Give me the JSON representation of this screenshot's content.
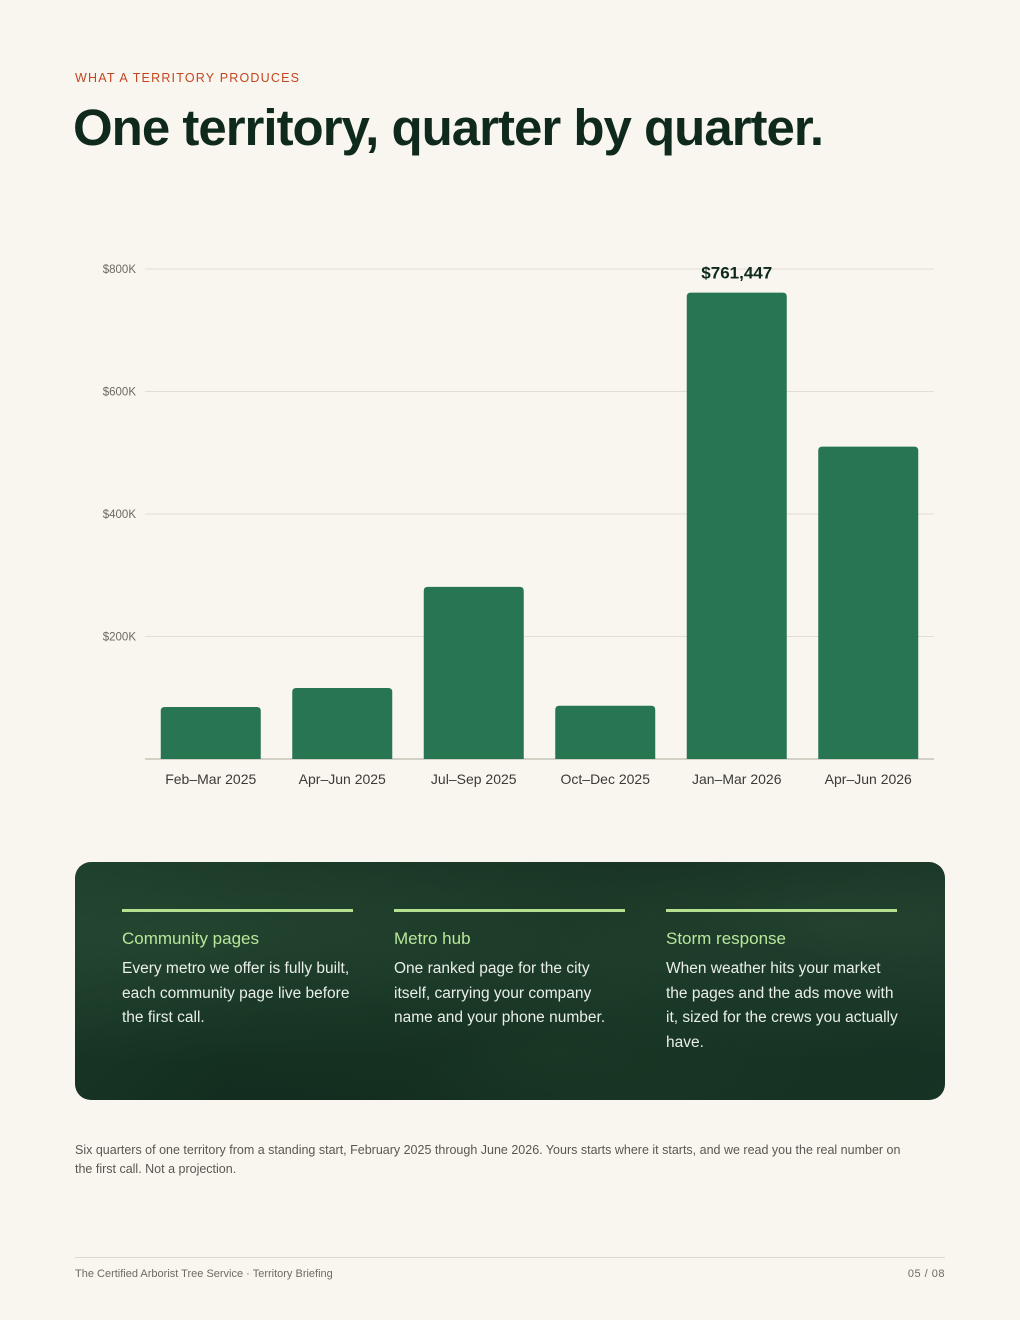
{
  "header": {
    "eyebrow": "WHAT A TERRITORY PRODUCES",
    "title": "One territory, quarter by quarter."
  },
  "chart_data": {
    "type": "bar",
    "categories": [
      "Feb–Mar 2025",
      "Apr–Jun 2025",
      "Jul–Sep 2025",
      "Oct–Dec 2025",
      "Jan–Mar 2026",
      "Apr–Jun 2026"
    ],
    "values": [
      85000,
      116000,
      281000,
      87000,
      761447,
      510000
    ],
    "ylim": [
      0,
      800000
    ],
    "yticks": [
      200000,
      400000,
      600000,
      800000
    ],
    "ytick_labels": [
      "$200K",
      "$400K",
      "$600K",
      "$800K"
    ],
    "annotations": [
      {
        "category": "Jan–Mar 2026",
        "label": "$761,447"
      }
    ],
    "bar_color": "#287552",
    "grid": true,
    "title": "",
    "xlabel": "",
    "ylabel": ""
  },
  "features": [
    {
      "title": "Community pages",
      "body": "Every metro we offer is fully built, each community page live before the first call."
    },
    {
      "title": "Metro hub",
      "body": "One ranked page for the city itself, carrying your company name and your phone number."
    },
    {
      "title": "Storm response",
      "body": "When weather hits your market the pages and the ads move with it, sized for the crews you actually have."
    }
  ],
  "footnote": "Six quarters of one territory from a standing start, February 2025 through June 2026. Yours starts where it starts, and we read you the real number on the first call. Not a projection.",
  "footer": {
    "left": "The Certified Arborist Tree Service · Territory Briefing",
    "right": "05 / 08"
  }
}
